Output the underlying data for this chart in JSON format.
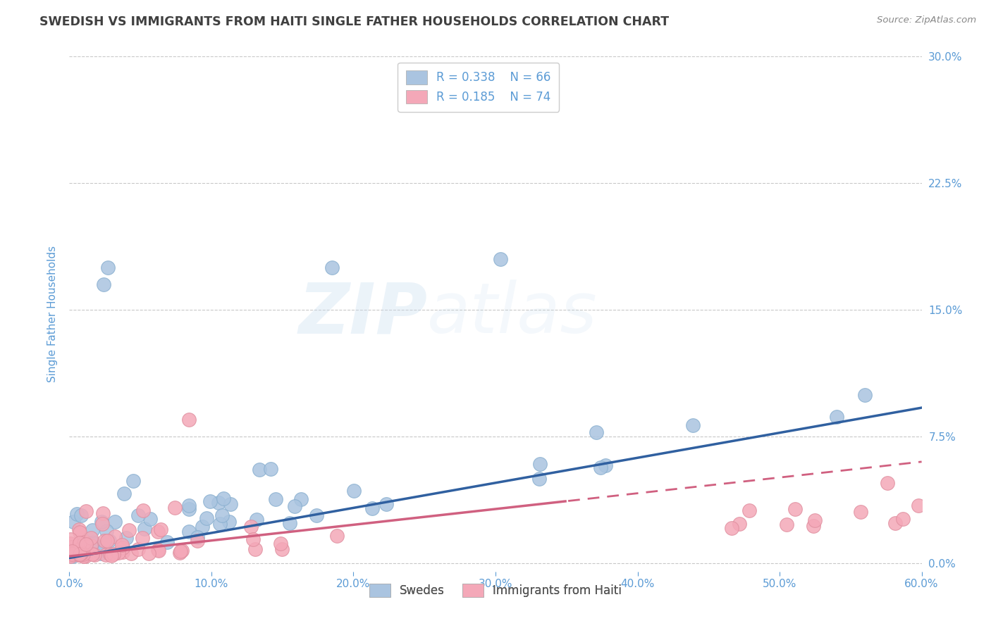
{
  "title": "SWEDISH VS IMMIGRANTS FROM HAITI SINGLE FATHER HOUSEHOLDS CORRELATION CHART",
  "source": "Source: ZipAtlas.com",
  "ylabel": "Single Father Households",
  "xlabel_ticks": [
    "0.0%",
    "10.0%",
    "20.0%",
    "30.0%",
    "40.0%",
    "50.0%",
    "60.0%"
  ],
  "xlabel_vals": [
    0.0,
    0.1,
    0.2,
    0.3,
    0.4,
    0.5,
    0.6
  ],
  "ytick_labels": [
    "0.0%",
    "7.5%",
    "15.0%",
    "22.5%",
    "30.0%"
  ],
  "ytick_vals": [
    0.0,
    0.075,
    0.15,
    0.225,
    0.3
  ],
  "xlim": [
    0.0,
    0.6
  ],
  "ylim": [
    -0.005,
    0.3
  ],
  "legend_bottom": [
    "Swedes",
    "Immigrants from Haiti"
  ],
  "legend_top_R1": "R = 0.338",
  "legend_top_N1": "N = 66",
  "legend_top_R2": "R = 0.185",
  "legend_top_N2": "N = 74",
  "blue_color": "#aac4e0",
  "pink_color": "#f4a8b8",
  "blue_line_color": "#3060a0",
  "pink_line_color": "#d06080",
  "title_color": "#404040",
  "axis_label_color": "#5b9bd5",
  "grid_color": "#c8c8c8",
  "watermark": "ZIPatlas",
  "sw_R": 0.338,
  "sw_N": 66,
  "ha_R": 0.185,
  "ha_N": 74,
  "sw_line_start_y": 0.003,
  "sw_line_end_y": 0.092,
  "ha_line_start_y": 0.004,
  "ha_line_end_y": 0.06
}
